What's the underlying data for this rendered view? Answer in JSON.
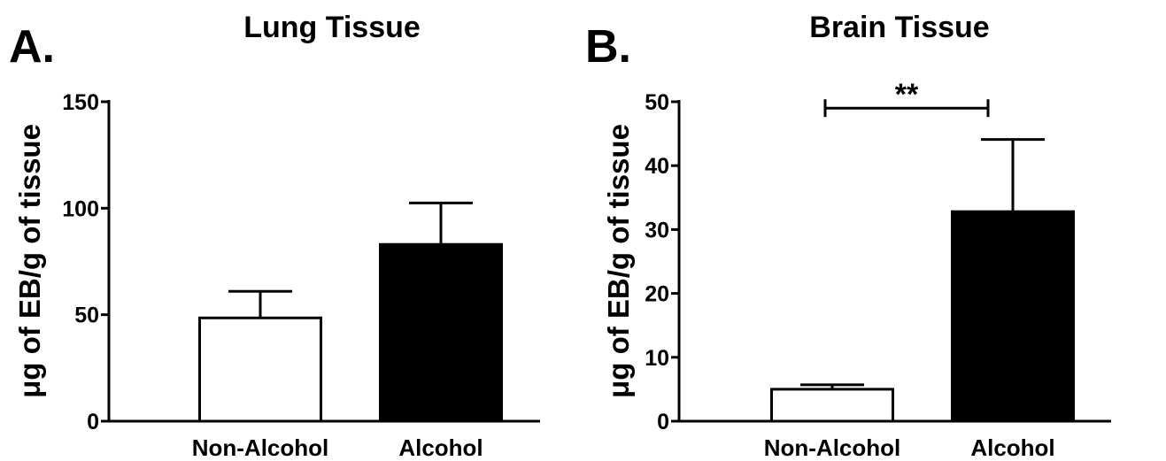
{
  "chart_data": [
    {
      "type": "bar",
      "panel_label": "A.",
      "title": "Lung Tissue",
      "xlabel": "",
      "ylabel": "μg of EB/g of tissue",
      "categories": [
        "Non-Alcohol",
        "Alcohol"
      ],
      "values": [
        48.5,
        83
      ],
      "error": [
        12.5,
        19.5
      ],
      "bar_fill": [
        "#ffffff",
        "#000000"
      ],
      "ylim": [
        0,
        150
      ],
      "yticks": [
        0,
        50,
        100,
        150
      ],
      "significance": null,
      "grid": false
    },
    {
      "type": "bar",
      "panel_label": "B.",
      "title": "Brain Tissue",
      "xlabel": "",
      "ylabel": "μg of EB/g of tissue",
      "categories": [
        "Non-Alcohol",
        "Alcohol"
      ],
      "values": [
        5,
        32.8
      ],
      "error": [
        0.7,
        11.3
      ],
      "bar_fill": [
        "#ffffff",
        "#000000"
      ],
      "ylim": [
        0,
        50
      ],
      "yticks": [
        0,
        10,
        20,
        30,
        40,
        50
      ],
      "significance": {
        "label": "**",
        "from": 0,
        "to": 1,
        "y": 49
      },
      "grid": false
    }
  ]
}
